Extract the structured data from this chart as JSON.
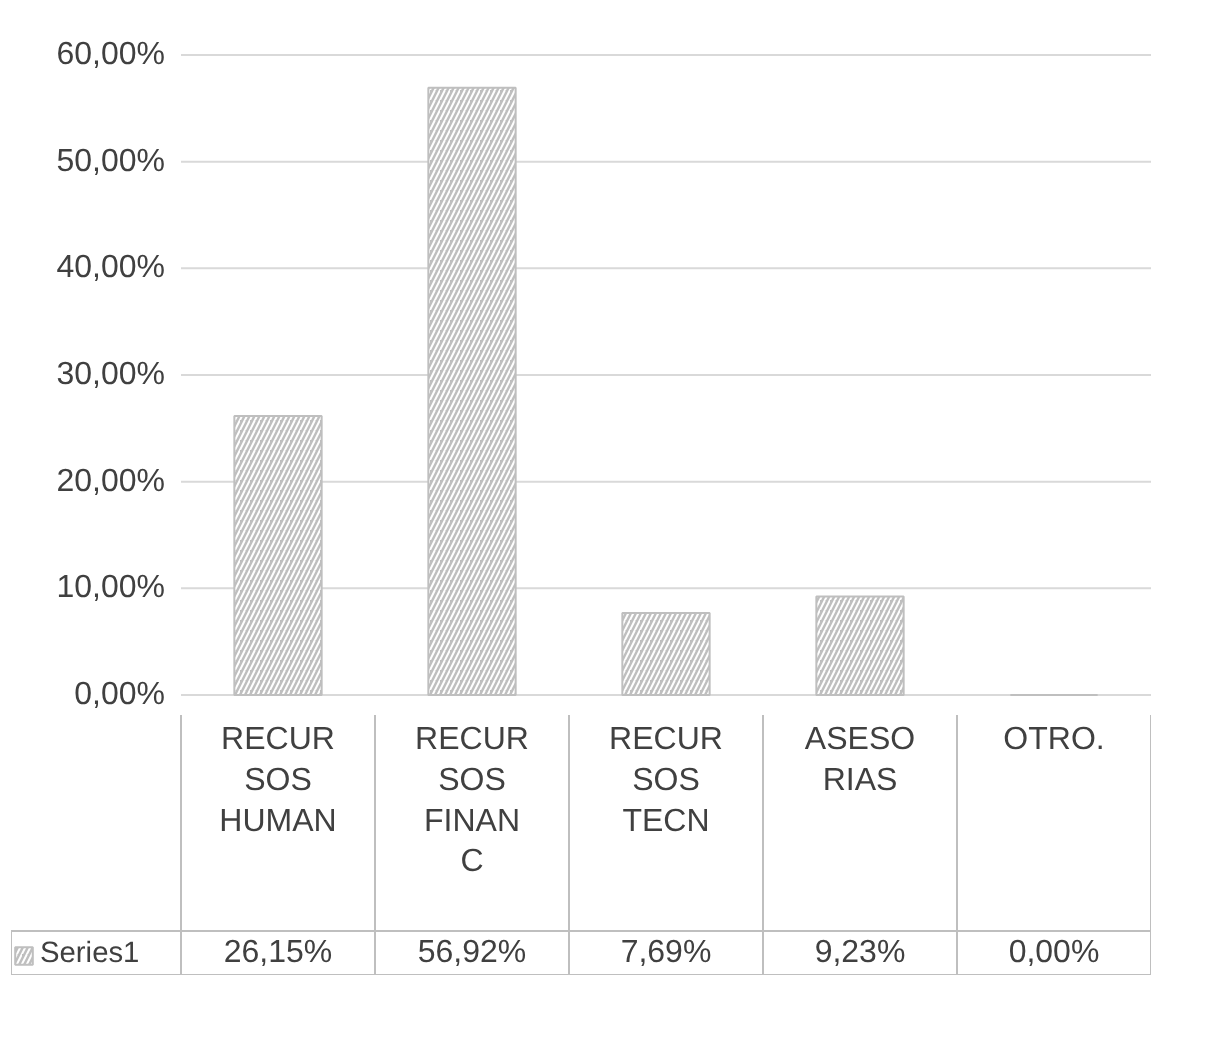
{
  "chart_data": {
    "type": "bar",
    "categories": [
      "RECURSOS HUMAN",
      "RECURSOS FINANC",
      "RECURSOS TECN",
      "ASESORIAS",
      "OTRO."
    ],
    "series": [
      {
        "name": "Series1",
        "color": "#bfbfbf",
        "values": [
          26.15,
          56.92,
          7.69,
          9.23,
          0.0
        ],
        "value_labels": [
          "26,15%",
          "56,92%",
          "7,69%",
          "9,23%",
          "0,00%"
        ]
      }
    ],
    "ylim": [
      0,
      60
    ],
    "yticks": [
      {
        "value": 0,
        "label": "0,00%"
      },
      {
        "value": 10,
        "label": "10,00%"
      },
      {
        "value": 20,
        "label": "20,00%"
      },
      {
        "value": 30,
        "label": "30,00%"
      },
      {
        "value": 40,
        "label": "40,00%"
      },
      {
        "value": 50,
        "label": "50,00%"
      },
      {
        "value": 60,
        "label": "60,00%"
      }
    ],
    "grid": "y",
    "legend": "bottom"
  }
}
